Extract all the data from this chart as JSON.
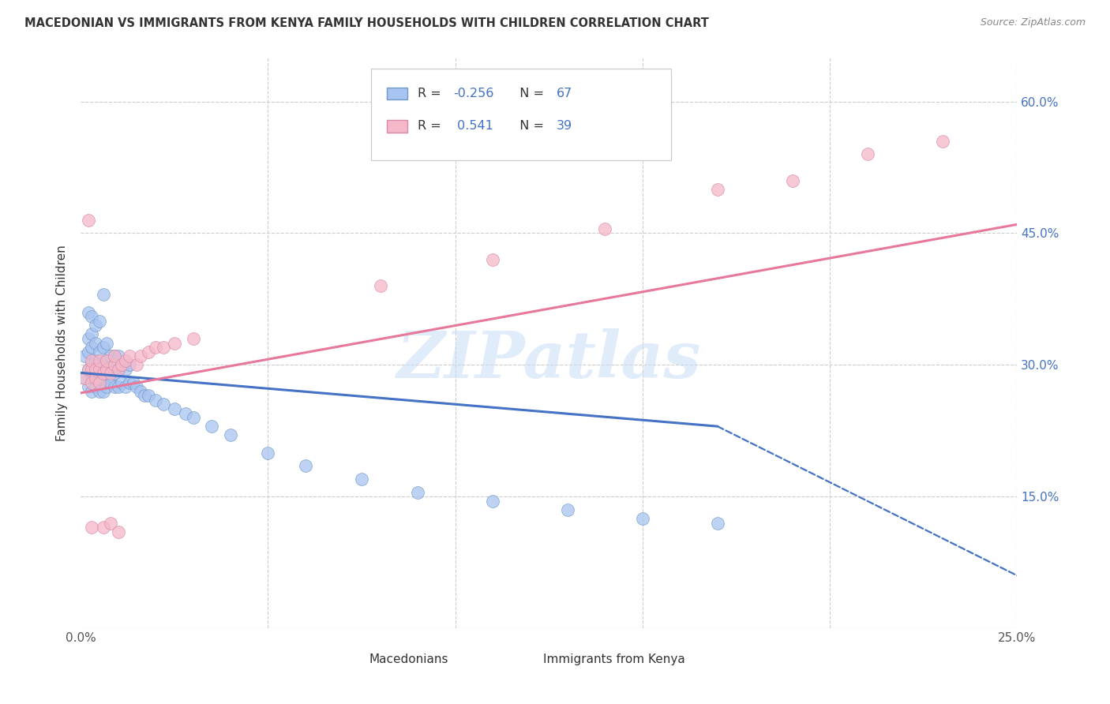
{
  "title": "MACEDONIAN VS IMMIGRANTS FROM KENYA FAMILY HOUSEHOLDS WITH CHILDREN CORRELATION CHART",
  "source": "Source: ZipAtlas.com",
  "ylabel": "Family Households with Children",
  "xlim": [
    0.0,
    0.25
  ],
  "ylim": [
    0.0,
    0.65
  ],
  "color_blue": "#A8C4F0",
  "color_pink": "#F5B8C8",
  "color_blue_line": "#4472C4",
  "color_pink_line": "#E8789A",
  "watermark": "ZIPatlas",
  "mac_x": [
    0.001,
    0.001,
    0.002,
    0.002,
    0.002,
    0.002,
    0.003,
    0.003,
    0.003,
    0.003,
    0.003,
    0.004,
    0.004,
    0.004,
    0.004,
    0.005,
    0.005,
    0.005,
    0.005,
    0.006,
    0.006,
    0.006,
    0.006,
    0.007,
    0.007,
    0.007,
    0.007,
    0.008,
    0.008,
    0.008,
    0.009,
    0.009,
    0.009,
    0.01,
    0.01,
    0.01,
    0.011,
    0.011,
    0.012,
    0.012,
    0.013,
    0.013,
    0.014,
    0.015,
    0.016,
    0.017,
    0.018,
    0.02,
    0.022,
    0.025,
    0.028,
    0.03,
    0.035,
    0.04,
    0.05,
    0.06,
    0.075,
    0.09,
    0.11,
    0.13,
    0.15,
    0.17,
    0.002,
    0.003,
    0.004,
    0.005,
    0.006
  ],
  "mac_y": [
    0.285,
    0.31,
    0.275,
    0.295,
    0.315,
    0.33,
    0.27,
    0.285,
    0.3,
    0.32,
    0.335,
    0.275,
    0.29,
    0.305,
    0.325,
    0.27,
    0.285,
    0.3,
    0.315,
    0.27,
    0.285,
    0.3,
    0.32,
    0.275,
    0.29,
    0.305,
    0.325,
    0.28,
    0.295,
    0.31,
    0.275,
    0.29,
    0.31,
    0.275,
    0.295,
    0.31,
    0.28,
    0.3,
    0.275,
    0.295,
    0.28,
    0.3,
    0.28,
    0.275,
    0.27,
    0.265,
    0.265,
    0.26,
    0.255,
    0.25,
    0.245,
    0.24,
    0.23,
    0.22,
    0.2,
    0.185,
    0.17,
    0.155,
    0.145,
    0.135,
    0.125,
    0.12,
    0.36,
    0.355,
    0.345,
    0.35,
    0.38
  ],
  "kenya_x": [
    0.001,
    0.002,
    0.002,
    0.003,
    0.003,
    0.003,
    0.004,
    0.004,
    0.005,
    0.005,
    0.005,
    0.006,
    0.007,
    0.007,
    0.008,
    0.009,
    0.009,
    0.01,
    0.011,
    0.012,
    0.013,
    0.015,
    0.016,
    0.018,
    0.02,
    0.022,
    0.025,
    0.03,
    0.08,
    0.11,
    0.14,
    0.17,
    0.19,
    0.21,
    0.23,
    0.003,
    0.006,
    0.008,
    0.01
  ],
  "kenya_y": [
    0.285,
    0.295,
    0.465,
    0.28,
    0.295,
    0.305,
    0.285,
    0.295,
    0.28,
    0.295,
    0.305,
    0.29,
    0.295,
    0.305,
    0.29,
    0.3,
    0.31,
    0.295,
    0.3,
    0.305,
    0.31,
    0.3,
    0.31,
    0.315,
    0.32,
    0.32,
    0.325,
    0.33,
    0.39,
    0.42,
    0.455,
    0.5,
    0.51,
    0.54,
    0.555,
    0.115,
    0.115,
    0.12,
    0.11
  ],
  "mac_line_x0": 0.0,
  "mac_line_y0": 0.291,
  "mac_line_x1": 0.17,
  "mac_line_y1": 0.23,
  "mac_line_x2": 0.25,
  "mac_line_y2": 0.06,
  "kenya_line_x0": 0.0,
  "kenya_line_y0": 0.268,
  "kenya_line_x1": 0.25,
  "kenya_line_y1": 0.46
}
